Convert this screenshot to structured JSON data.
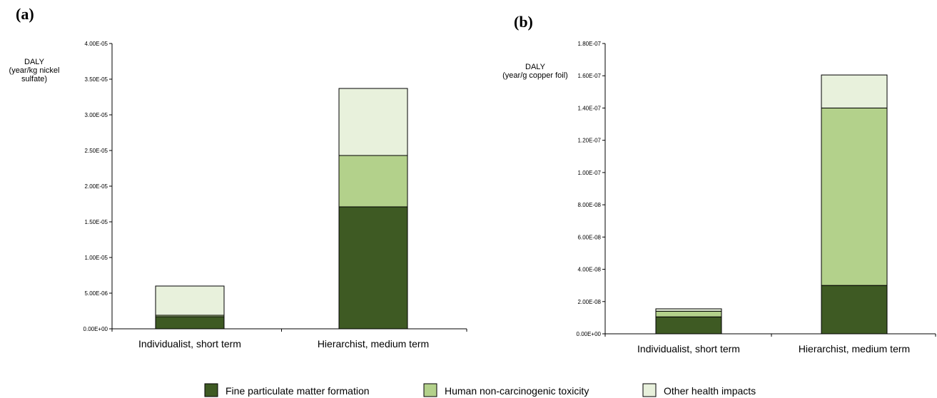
{
  "chart_data": [
    {
      "type": "bar",
      "stacked": true,
      "panel_label": "(a)",
      "ylabel_lines": [
        "DALY",
        "(year/kg nickel",
        "sulfate)"
      ],
      "ylim": [
        0,
        4e-05
      ],
      "yticks": [
        0,
        5e-06,
        1e-05,
        1.5e-05,
        2e-05,
        2.5e-05,
        3e-05,
        3.5e-05,
        4e-05
      ],
      "ytick_labels": [
        "0.00E+00",
        "5.00E-06",
        "1.00E-05",
        "1.50E-05",
        "2.00E-05",
        "2.50E-05",
        "3.00E-05",
        "3.50E-05",
        "4.00E-05"
      ],
      "categories": [
        "Individualist, short term",
        "Hierarchist, medium term"
      ],
      "series": [
        {
          "name": "Fine particulate matter formation",
          "values": [
            1.7e-06,
            1.71e-05
          ]
        },
        {
          "name": "Human non-carcinogenic toxicity",
          "values": [
            2e-07,
            7.2e-06
          ]
        },
        {
          "name": "Other health impacts",
          "values": [
            4.1e-06,
            9.4e-06
          ]
        }
      ]
    },
    {
      "type": "bar",
      "stacked": true,
      "panel_label": "(b)",
      "ylabel_lines": [
        "DALY",
        "(year/g copper foil)"
      ],
      "ylim": [
        0,
        1.8e-07
      ],
      "yticks": [
        0,
        2e-08,
        4e-08,
        6e-08,
        8e-08,
        1e-07,
        1.2e-07,
        1.4e-07,
        1.6e-07,
        1.8e-07
      ],
      "ytick_labels": [
        "0.00E+00",
        "2.00E-08",
        "4.00E-08",
        "6.00E-08",
        "8.00E-08",
        "1.00E-07",
        "1.20E-07",
        "1.40E-07",
        "1.60E-07",
        "1.80E-07"
      ],
      "categories": [
        "Individualist, short term",
        "Hierarchist, medium term"
      ],
      "series": [
        {
          "name": "Fine particulate matter formation",
          "values": [
            1.05e-08,
            3e-08
          ]
        },
        {
          "name": "Human non-carcinogenic toxicity",
          "values": [
            3.5e-09,
            1.1e-07
          ]
        },
        {
          "name": "Other health impacts",
          "values": [
            1.5e-09,
            2.05e-08
          ]
        }
      ]
    }
  ],
  "legend": [
    {
      "label": "Fine particulate matter formation",
      "color": "#3e5a23"
    },
    {
      "label": "Human non-carcinogenic toxicity",
      "color": "#b3d18b"
    },
    {
      "label": "Other health impacts",
      "color": "#e8f1dc"
    }
  ],
  "colors": {
    "fine_pm": "#3e5a23",
    "human_tox": "#b3d18b",
    "other": "#e8f1dc",
    "stroke": "#000000"
  }
}
